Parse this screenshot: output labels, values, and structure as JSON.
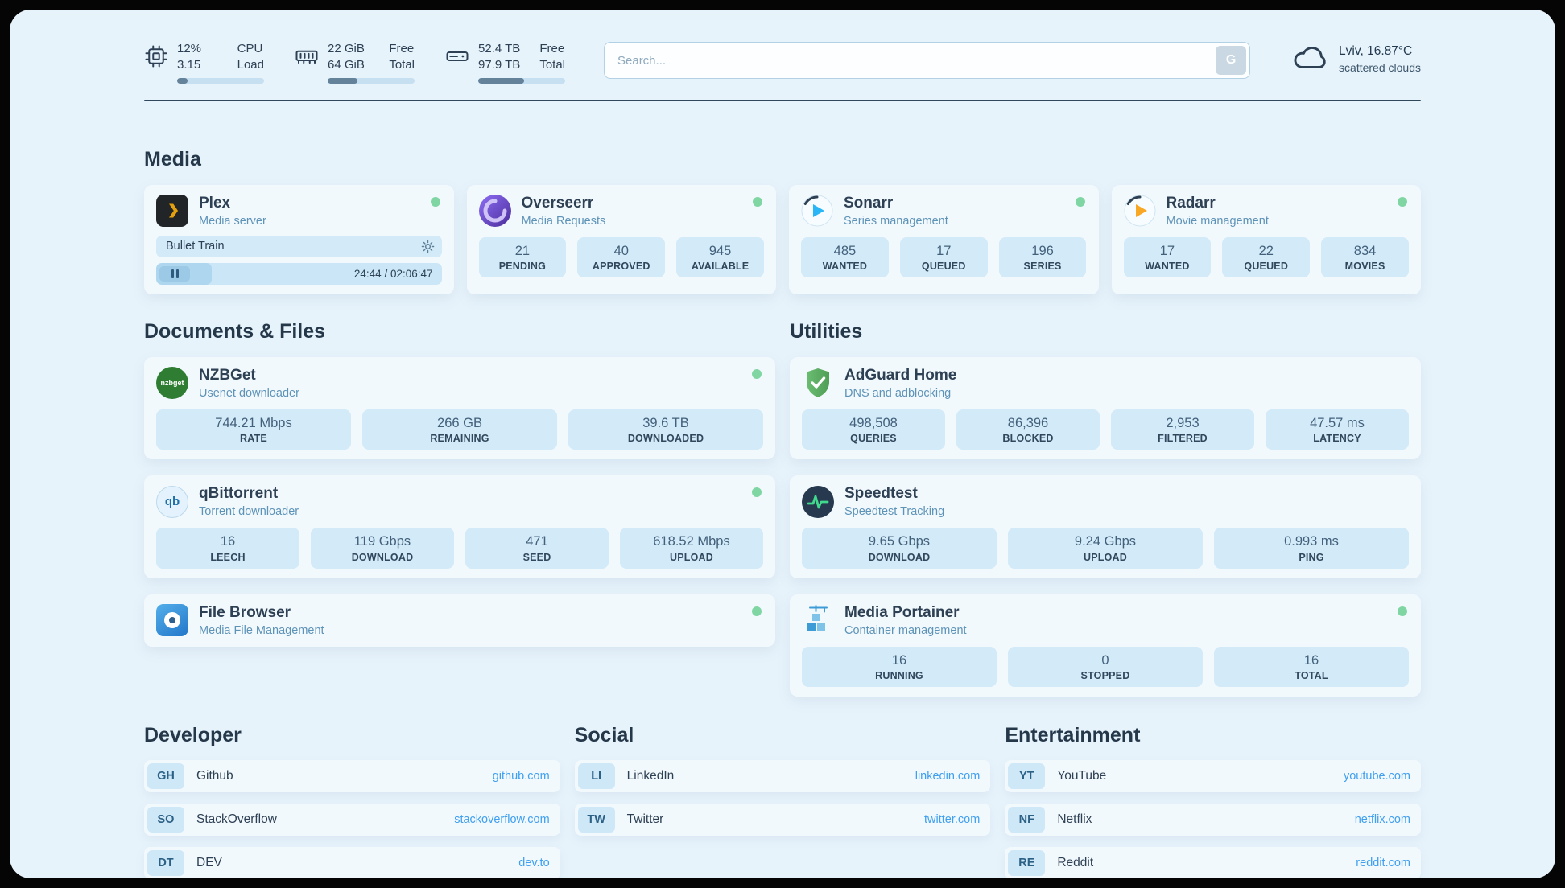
{
  "colors": {
    "status_online": "#7fd6a2",
    "link": "#3f9ff0",
    "tile_bg": "#d3eaf9",
    "panel_bg": "#e7f3fb"
  },
  "topbar": {
    "metrics": [
      {
        "id": "cpu",
        "value1": "12%",
        "label1": "CPU",
        "value2": "3.15",
        "label2": "Load",
        "percent": 12
      },
      {
        "id": "ram",
        "value1": "22 GiB",
        "label1": "Free",
        "value2": "64 GiB",
        "label2": "Total",
        "percent": 34
      },
      {
        "id": "disk",
        "value1": "52.4 TB",
        "label1": "Free",
        "value2": "97.9 TB",
        "label2": "Total",
        "percent": 53
      }
    ],
    "search": {
      "placeholder": "Search...",
      "button_label": "G"
    },
    "weather": {
      "location": "Lviv, 16.87°C",
      "condition": "scattered clouds"
    }
  },
  "media": {
    "heading": "Media",
    "plex": {
      "name": "Plex",
      "subtitle": "Media server",
      "now_playing": "Bullet Train",
      "time": "24:44 / 02:06:47",
      "progress_percent": 19.5
    },
    "overseerr": {
      "name": "Overseerr",
      "subtitle": "Media Requests",
      "stats": [
        {
          "value": "21",
          "label": "PENDING"
        },
        {
          "value": "40",
          "label": "APPROVED"
        },
        {
          "value": "945",
          "label": "AVAILABLE"
        }
      ]
    },
    "sonarr": {
      "name": "Sonarr",
      "subtitle": "Series management",
      "stats": [
        {
          "value": "485",
          "label": "WANTED"
        },
        {
          "value": "17",
          "label": "QUEUED"
        },
        {
          "value": "196",
          "label": "SERIES"
        }
      ]
    },
    "radarr": {
      "name": "Radarr",
      "subtitle": "Movie management",
      "stats": [
        {
          "value": "17",
          "label": "WANTED"
        },
        {
          "value": "22",
          "label": "QUEUED"
        },
        {
          "value": "834",
          "label": "MOVIES"
        }
      ]
    }
  },
  "documents": {
    "heading": "Documents & Files",
    "nzbget": {
      "name": "NZBGet",
      "subtitle": "Usenet downloader",
      "icon_text": "nzbget",
      "stats": [
        {
          "value": "744.21 Mbps",
          "label": "RATE"
        },
        {
          "value": "266 GB",
          "label": "REMAINING"
        },
        {
          "value": "39.6 TB",
          "label": "DOWNLOADED"
        }
      ]
    },
    "qbittorrent": {
      "name": "qBittorrent",
      "subtitle": "Torrent downloader",
      "icon_text": "qb",
      "stats": [
        {
          "value": "16",
          "label": "LEECH"
        },
        {
          "value": "119 Gbps",
          "label": "DOWNLOAD"
        },
        {
          "value": "471",
          "label": "SEED"
        },
        {
          "value": "618.52 Mbps",
          "label": "UPLOAD"
        }
      ]
    },
    "filebrowser": {
      "name": "File Browser",
      "subtitle": "Media File Management"
    }
  },
  "utilities": {
    "heading": "Utilities",
    "adguard": {
      "name": "AdGuard Home",
      "subtitle": "DNS and adblocking",
      "stats": [
        {
          "value": "498,508",
          "label": "QUERIES"
        },
        {
          "value": "86,396",
          "label": "BLOCKED"
        },
        {
          "value": "2,953",
          "label": "FILTERED"
        },
        {
          "value": "47.57 ms",
          "label": "LATENCY"
        }
      ]
    },
    "speedtest": {
      "name": "Speedtest",
      "subtitle": "Speedtest Tracking",
      "stats": [
        {
          "value": "9.65 Gbps",
          "label": "DOWNLOAD"
        },
        {
          "value": "9.24 Gbps",
          "label": "UPLOAD"
        },
        {
          "value": "0.993 ms",
          "label": "PING"
        }
      ]
    },
    "portainer": {
      "name": "Media Portainer",
      "subtitle": "Container management",
      "stats": [
        {
          "value": "16",
          "label": "RUNNING"
        },
        {
          "value": "0",
          "label": "STOPPED"
        },
        {
          "value": "16",
          "label": "TOTAL"
        }
      ]
    }
  },
  "bookmarks": {
    "developer": {
      "heading": "Developer",
      "items": [
        {
          "abbr": "GH",
          "name": "Github",
          "url": "github.com"
        },
        {
          "abbr": "SO",
          "name": "StackOverflow",
          "url": "stackoverflow.com"
        },
        {
          "abbr": "DT",
          "name": "DEV",
          "url": "dev.to"
        }
      ]
    },
    "social": {
      "heading": "Social",
      "items": [
        {
          "abbr": "LI",
          "name": "LinkedIn",
          "url": "linkedin.com"
        },
        {
          "abbr": "TW",
          "name": "Twitter",
          "url": "twitter.com"
        }
      ]
    },
    "entertainment": {
      "heading": "Entertainment",
      "items": [
        {
          "abbr": "YT",
          "name": "YouTube",
          "url": "youtube.com"
        },
        {
          "abbr": "NF",
          "name": "Netflix",
          "url": "netflix.com"
        },
        {
          "abbr": "RE",
          "name": "Reddit",
          "url": "reddit.com"
        }
      ]
    }
  }
}
